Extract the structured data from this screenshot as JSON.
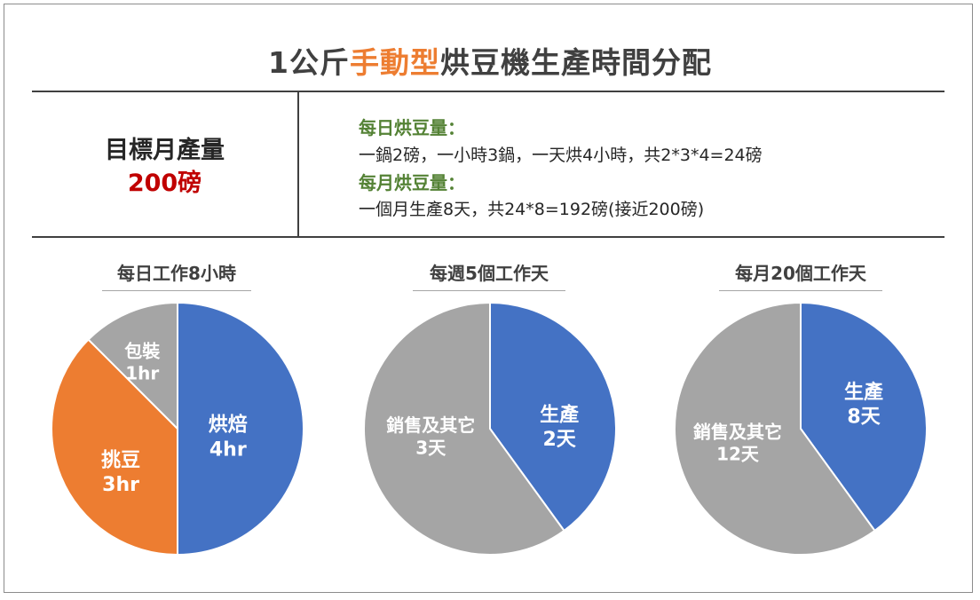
{
  "title": {
    "prefix": "1公斤",
    "accent": "手動型",
    "suffix": "烘豆機生產時間分配"
  },
  "target": {
    "label": "目標月產量",
    "value": "200磅"
  },
  "info": {
    "daily_heading": "每日烘豆量：",
    "daily_text": "一鍋2磅，一小時3鍋，一天烘4小時，共2*3*4=24磅",
    "monthly_heading": "每月烘豆量：",
    "monthly_text": "一個月生產8天，共24*8=192磅(接近200磅)"
  },
  "colors": {
    "blue": "#4472c4",
    "orange": "#ed7d31",
    "gray": "#a5a5a5",
    "accent": "#ed7d31",
    "green": "#548235",
    "red": "#c00000"
  },
  "chart_data": [
    {
      "type": "pie",
      "title": "每日工作8小時",
      "slices": [
        {
          "name": "烘焙",
          "value": 4,
          "label": "4hr",
          "color": "#4472c4"
        },
        {
          "name": "挑豆",
          "value": 3,
          "label": "3hr",
          "color": "#ed7d31"
        },
        {
          "name": "包裝",
          "value": 1,
          "label": "1hr",
          "color": "#a5a5a5"
        }
      ]
    },
    {
      "type": "pie",
      "title": "每週5個工作天",
      "slices": [
        {
          "name": "生產",
          "value": 2,
          "label": "2天",
          "color": "#4472c4"
        },
        {
          "name": "銷售及其它",
          "value": 3,
          "label": "3天",
          "color": "#a5a5a5"
        }
      ]
    },
    {
      "type": "pie",
      "title": "每月20個工作天",
      "slices": [
        {
          "name": "生產",
          "value": 8,
          "label": "8天",
          "color": "#4472c4"
        },
        {
          "name": "銷售及其它",
          "value": 12,
          "label": "12天",
          "color": "#a5a5a5"
        }
      ]
    }
  ]
}
